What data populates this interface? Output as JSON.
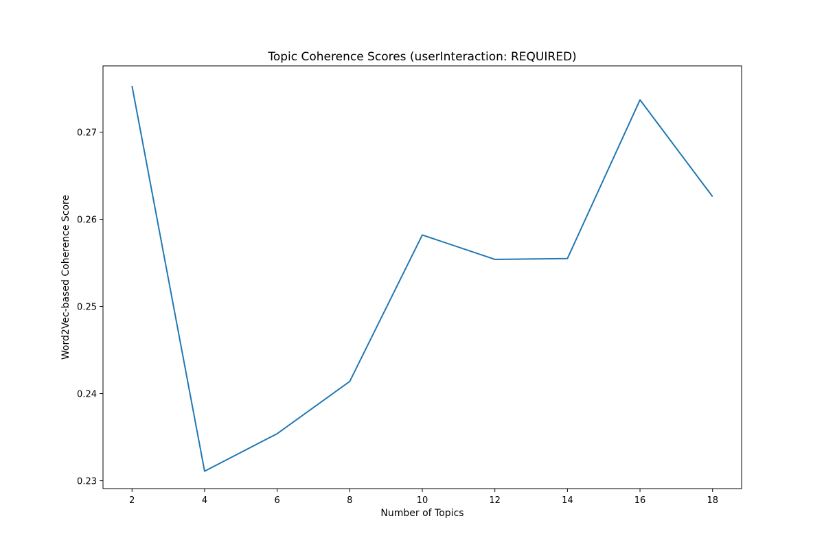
{
  "chart_data": {
    "type": "line",
    "title": "Topic Coherence Scores (userInteraction: REQUIRED)",
    "xlabel": "Number of Topics",
    "ylabel": "Word2Vec-based Coherence Score",
    "x": [
      2,
      4,
      6,
      8,
      10,
      12,
      14,
      16,
      18
    ],
    "series": [
      {
        "name": "coherence",
        "values": [
          0.2753,
          0.2311,
          0.2354,
          0.2414,
          0.2582,
          0.2554,
          0.2555,
          0.2737,
          0.2626
        ],
        "color": "#1f77b4"
      }
    ],
    "xlim": [
      1.2,
      18.8
    ],
    "ylim": [
      0.2291,
      0.2776
    ],
    "xticks": [
      2,
      4,
      6,
      8,
      10,
      12,
      14,
      16,
      18
    ],
    "xtick_labels": [
      "2",
      "4",
      "6",
      "8",
      "10",
      "12",
      "14",
      "16",
      "18"
    ],
    "yticks": [
      0.23,
      0.24,
      0.25,
      0.26,
      0.27
    ],
    "ytick_labels": [
      "0.23",
      "0.24",
      "0.25",
      "0.26",
      "0.27"
    ],
    "grid": false,
    "legend": "none"
  }
}
